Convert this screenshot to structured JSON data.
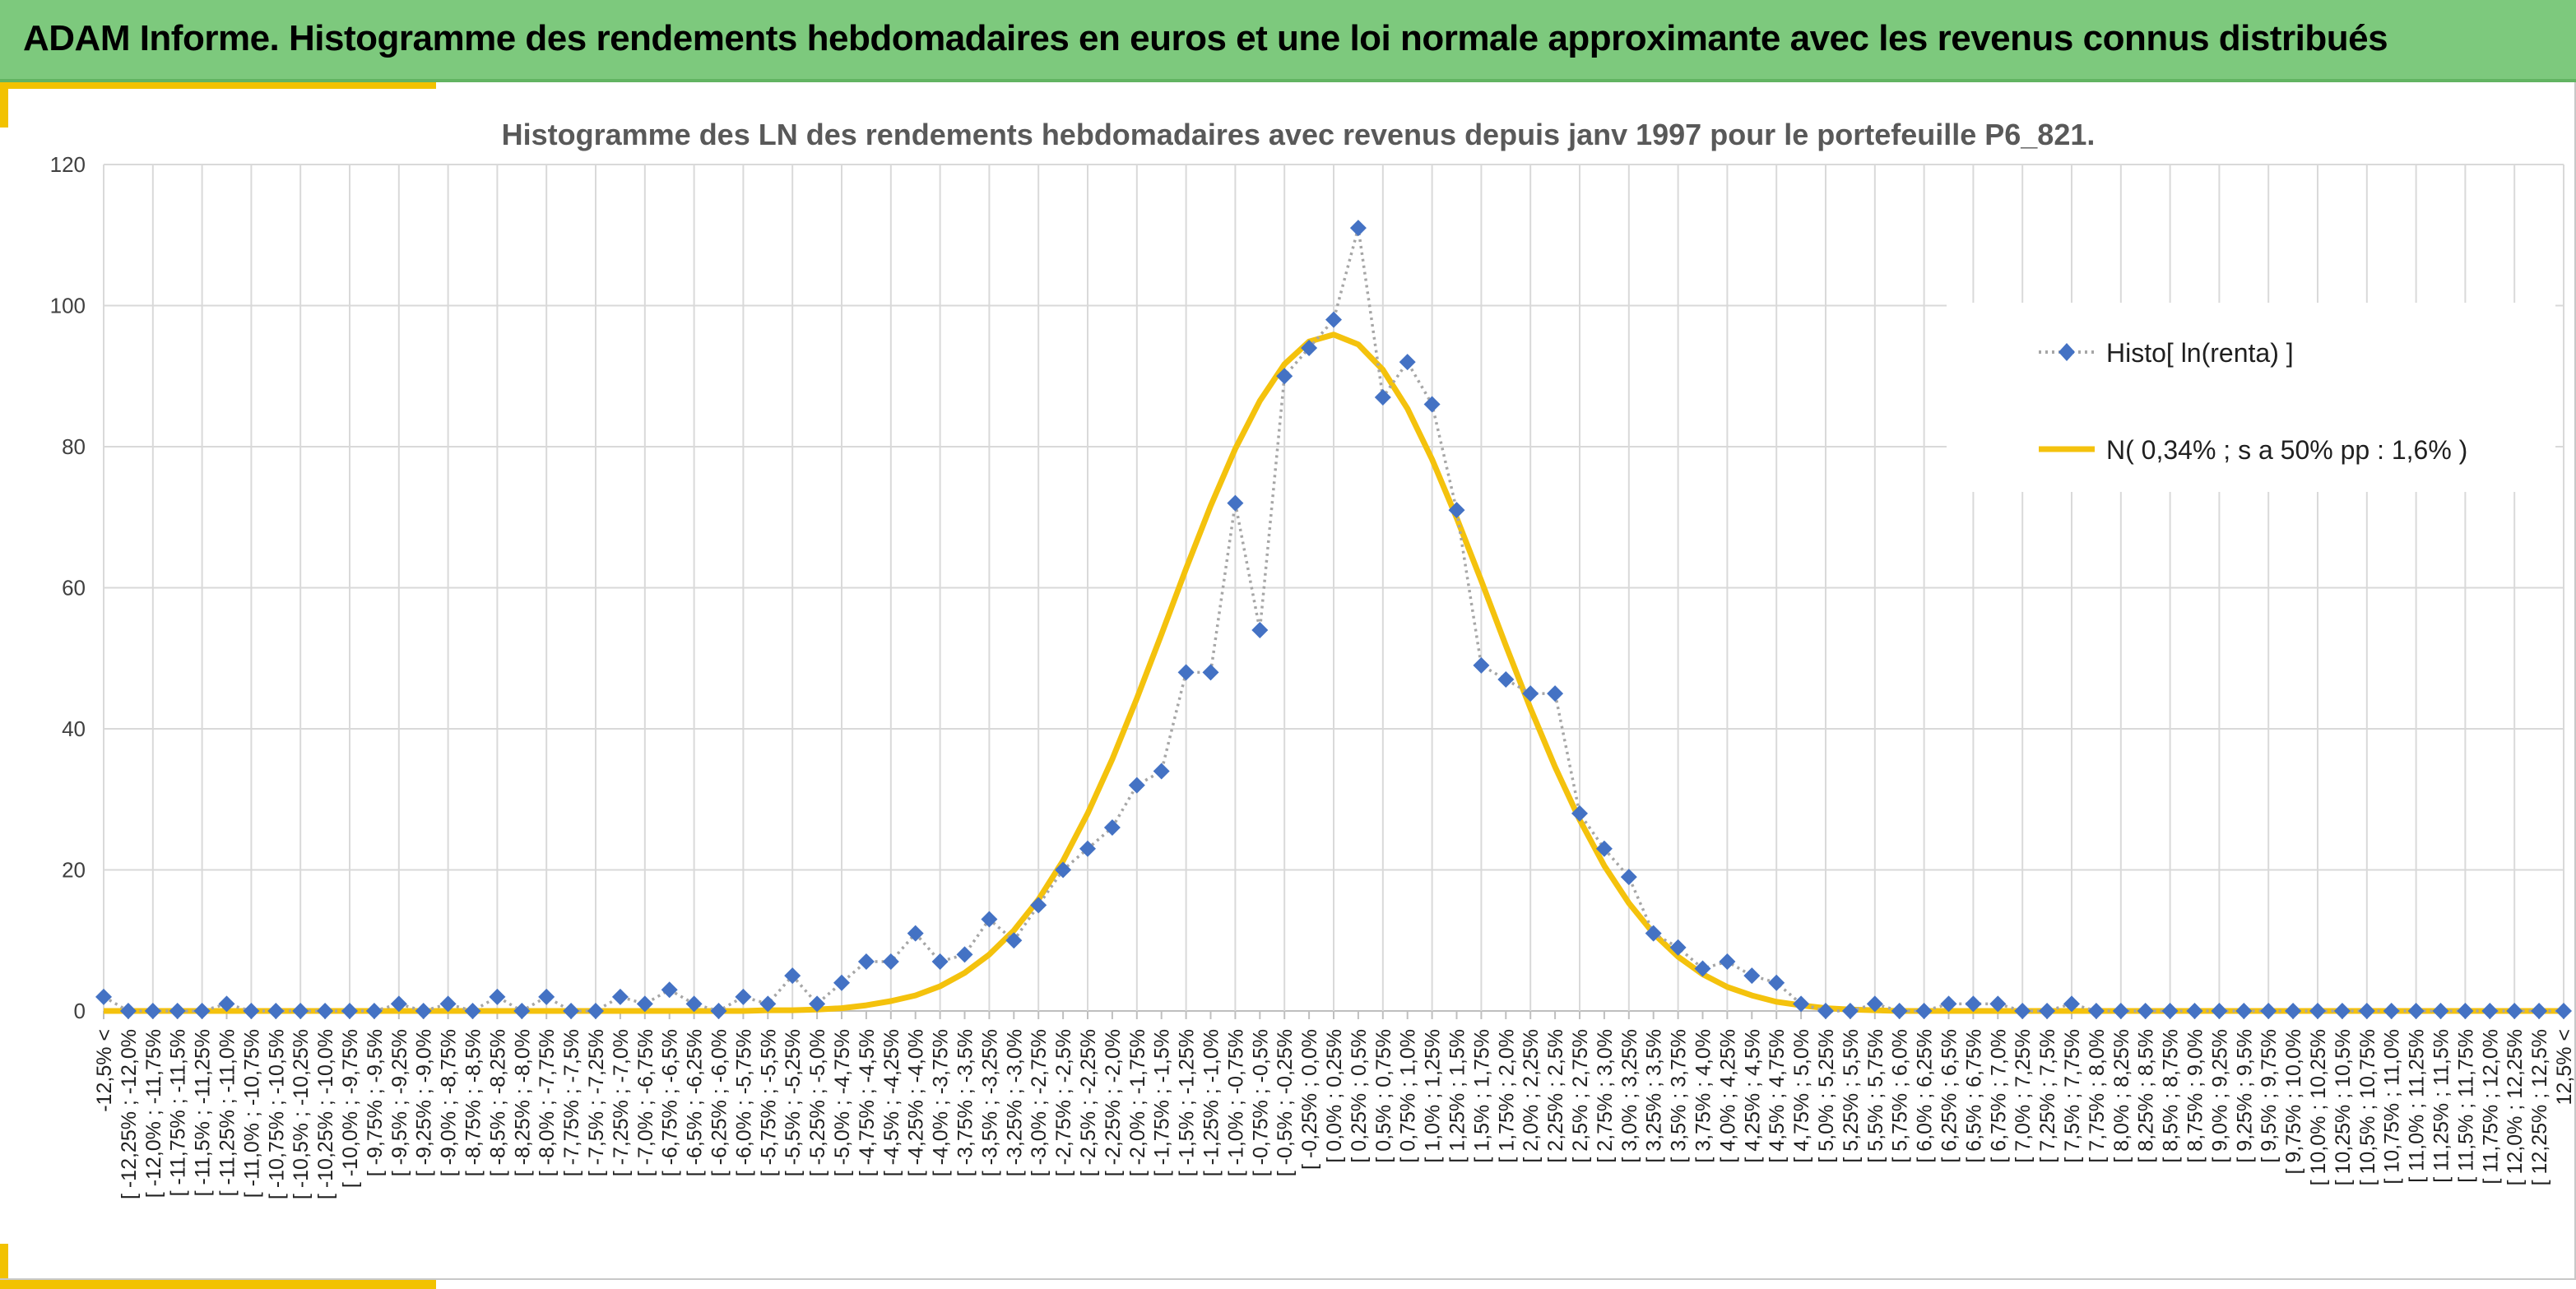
{
  "header": {
    "title": "ADAM Informe. Histogramme des rendements hebdomadaires en euros et une loi normale approximante avec les revenus connus distribués"
  },
  "colors": {
    "header_bg": "#7dc97d",
    "accent": "#f2c200",
    "histo_marker": "#4472c4",
    "histo_line": "#a6a6a6",
    "normal_line": "#f4c20d"
  },
  "chart_data": {
    "type": "line",
    "title": "Histogramme des LN des rendements hebdomadaires avec revenus depuis janv 1997 pour le portefeuille P6_821.",
    "xlabel": "",
    "ylabel": "",
    "ylim": [
      0,
      120
    ],
    "yticks": [
      0,
      20,
      40,
      60,
      80,
      100,
      120
    ],
    "grid": true,
    "legend_position": "right",
    "categories": [
      "-12,5% <",
      "[ -12,25% ; -12,0%",
      "[ -12,0% ; -11,75%",
      "[ -11,75% ; -11,5%",
      "[ -11,5% ; -11,25%",
      "[ -11,25% ; -11,0%",
      "[ -11,0% ; -10,75%",
      "[ -10,75% ; -10,5%",
      "[ -10,5% ; -10,25%",
      "[ -10,25% ; -10,0%",
      "[ -10,0% ; -9,75%",
      "[ -9,75% ; -9,5%",
      "[ -9,5% ; -9,25%",
      "[ -9,25% ; -9,0%",
      "[ -9,0% ; -8,75%",
      "[ -8,75% ; -8,5%",
      "[ -8,5% ; -8,25%",
      "[ -8,25% ; -8,0%",
      "[ -8,0% ; -7,75%",
      "[ -7,75% ; -7,5%",
      "[ -7,5% ; -7,25%",
      "[ -7,25% ; -7,0%",
      "[ -7,0% ; -6,75%",
      "[ -6,75% ; -6,5%",
      "[ -6,5% ; -6,25%",
      "[ -6,25% ; -6,0%",
      "[ -6,0% ; -5,75%",
      "[ -5,75% ; -5,5%",
      "[ -5,5% ; -5,25%",
      "[ -5,25% ; -5,0%",
      "[ -5,0% ; -4,75%",
      "[ -4,75% ; -4,5%",
      "[ -4,5% ; -4,25%",
      "[ -4,25% ; -4,0%",
      "[ -4,0% ; -3,75%",
      "[ -3,75% ; -3,5%",
      "[ -3,5% ; -3,25%",
      "[ -3,25% ; -3,0%",
      "[ -3,0% ; -2,75%",
      "[ -2,75% ; -2,5%",
      "[ -2,5% ; -2,25%",
      "[ -2,25% ; -2,0%",
      "[ -2,0% ; -1,75%",
      "[ -1,75% ; -1,5%",
      "[ -1,5% ; -1,25%",
      "[ -1,25% ; -1,0%",
      "[ -1,0% ; -0,75%",
      "[ -0,75% ; -0,5%",
      "[ -0,5% ; -0,25%",
      "[ -0,25% ; 0,0%",
      "[ 0,0% ; 0,25%",
      "[ 0,25% ; 0,5%",
      "[ 0,5% ; 0,75%",
      "[ 0,75% ; 1,0%",
      "[ 1,0% ; 1,25%",
      "[ 1,25% ; 1,5%",
      "[ 1,5% ; 1,75%",
      "[ 1,75% ; 2,0%",
      "[ 2,0% ; 2,25%",
      "[ 2,25% ; 2,5%",
      "[ 2,5% ; 2,75%",
      "[ 2,75% ; 3,0%",
      "[ 3,0% ; 3,25%",
      "[ 3,25% ; 3,5%",
      "[ 3,5% ; 3,75%",
      "[ 3,75% ; 4,0%",
      "[ 4,0% ; 4,25%",
      "[ 4,25% ; 4,5%",
      "[ 4,5% ; 4,75%",
      "[ 4,75% ; 5,0%",
      "[ 5,0% ; 5,25%",
      "[ 5,25% ; 5,5%",
      "[ 5,5% ; 5,75%",
      "[ 5,75% ; 6,0%",
      "[ 6,0% ; 6,25%",
      "[ 6,25% ; 6,5%",
      "[ 6,5% ; 6,75%",
      "[ 6,75% ; 7,0%",
      "[ 7,0% ; 7,25%",
      "[ 7,25% ; 7,5%",
      "[ 7,5% ; 7,75%",
      "[ 7,75% ; 8,0%",
      "[ 8,0% ; 8,25%",
      "[ 8,25% ; 8,5%",
      "[ 8,5% ; 8,75%",
      "[ 8,75% ; 9,0%",
      "[ 9,0% ; 9,25%",
      "[ 9,25% ; 9,5%",
      "[ 9,5% ; 9,75%",
      "[ 9,75% ; 10,0%",
      "[ 10,0% ; 10,25%",
      "[ 10,25% ; 10,5%",
      "[ 10,5% ; 10,75%",
      "[ 10,75% ; 11,0%",
      "[ 11,0% ; 11,25%",
      "[ 11,25% ; 11,5%",
      "[ 11,5% ; 11,75%",
      "[ 11,75% ; 12,0%",
      "[ 12,0% ; 12,25%",
      "[ 12,25% ; 12,5%",
      "12,5% <"
    ],
    "series": [
      {
        "name": "Histo[ ln(renta) ]",
        "style": "dotted-line-with-diamonds",
        "values": [
          2,
          0,
          0,
          0,
          0,
          1,
          0,
          0,
          0,
          0,
          0,
          0,
          1,
          0,
          1,
          0,
          2,
          0,
          2,
          0,
          0,
          2,
          1,
          3,
          1,
          0,
          2,
          1,
          5,
          1,
          4,
          7,
          7,
          11,
          7,
          8,
          13,
          10,
          15,
          20,
          23,
          26,
          32,
          34,
          48,
          48,
          72,
          54,
          90,
          94,
          98,
          111,
          87,
          92,
          86,
          71,
          49,
          47,
          45,
          45,
          28,
          23,
          19,
          11,
          9,
          6,
          7,
          5,
          4,
          1,
          0,
          0,
          1,
          0,
          0,
          1,
          1,
          1,
          0,
          0,
          1,
          0,
          0,
          0,
          0,
          0,
          0,
          0,
          0,
          0,
          0,
          0,
          0,
          0,
          0,
          0,
          0,
          0,
          0,
          0,
          0
        ]
      },
      {
        "name": "N( 0,34% ; s a 50% pp : 1,6% )",
        "style": "solid-line",
        "values": [
          0,
          0,
          0,
          0,
          0,
          0,
          0,
          0,
          0,
          0,
          0,
          0,
          0,
          0,
          0,
          0,
          0,
          0,
          0,
          0,
          0,
          0,
          0,
          0,
          0,
          0,
          0,
          0.1,
          0.1,
          0.2,
          0.4,
          0.8,
          1.4,
          2.2,
          3.5,
          5.4,
          8.0,
          11.4,
          15.8,
          21.3,
          28.0,
          35.7,
          44.3,
          53.4,
          62.7,
          71.6,
          79.7,
          86.5,
          91.7,
          94.9,
          95.9,
          94.5,
          90.9,
          85.4,
          78.2,
          69.9,
          61.0,
          51.8,
          42.9,
          34.6,
          27.1,
          20.6,
          15.3,
          11.0,
          7.7,
          5.2,
          3.4,
          2.2,
          1.3,
          0.8,
          0.4,
          0.2,
          0.1,
          0,
          0,
          0,
          0,
          0,
          0,
          0,
          0,
          0,
          0,
          0,
          0,
          0,
          0,
          0,
          0,
          0,
          0,
          0,
          0,
          0,
          0,
          0,
          0,
          0,
          0,
          0,
          0
        ]
      }
    ]
  }
}
